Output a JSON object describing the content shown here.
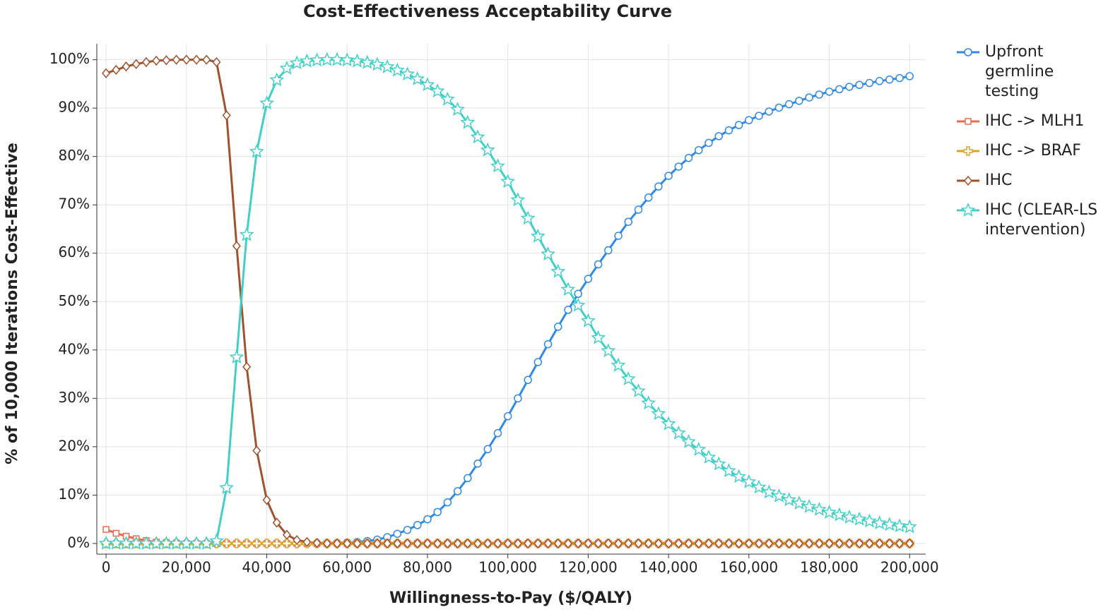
{
  "chart_data": {
    "type": "line",
    "title": "Cost-Effectiveness Acceptability Curve",
    "x_label": "Willingness-to-Pay ($/QALY)",
    "y_label": "% of 10,000 Iterations Cost-Effective",
    "x": [
      0,
      2500,
      5000,
      7500,
      10000,
      12500,
      15000,
      17500,
      20000,
      22500,
      25000,
      27500,
      30000,
      32500,
      35000,
      37500,
      40000,
      42500,
      45000,
      47500,
      50000,
      52500,
      55000,
      57500,
      60000,
      62500,
      65000,
      67500,
      70000,
      72500,
      75000,
      77500,
      80000,
      82500,
      85000,
      87500,
      90000,
      92500,
      95000,
      97500,
      100000,
      102500,
      105000,
      107500,
      110000,
      112500,
      115000,
      117500,
      120000,
      122500,
      125000,
      127500,
      130000,
      132500,
      135000,
      137500,
      140000,
      142500,
      145000,
      147500,
      150000,
      152500,
      155000,
      157500,
      160000,
      162500,
      165000,
      167500,
      170000,
      172500,
      175000,
      177500,
      180000,
      182500,
      185000,
      187500,
      190000,
      192500,
      195000,
      197500,
      200000
    ],
    "series": [
      {
        "name": "Upfront germline testing",
        "color": "#2e8ae6",
        "marker": "circle",
        "values": [
          0,
          0,
          0,
          0,
          0,
          0,
          0,
          0,
          0,
          0,
          0,
          0,
          0,
          0,
          0,
          0,
          0,
          0,
          0,
          0,
          0,
          0,
          0,
          0.1,
          0.2,
          0.3,
          0.5,
          0.8,
          1.3,
          2.0,
          2.8,
          3.8,
          5.0,
          6.5,
          8.5,
          10.8,
          13.5,
          16.5,
          19.5,
          22.8,
          26.3,
          30,
          33.8,
          37.5,
          41.2,
          44.8,
          48.3,
          51.6,
          54.7,
          57.7,
          60.6,
          63.6,
          66.5,
          69,
          71.5,
          73.8,
          76,
          77.9,
          79.7,
          81.3,
          82.8,
          84.2,
          85.4,
          86.5,
          87.5,
          88.4,
          89.3,
          90.1,
          90.8,
          91.5,
          92.2,
          92.8,
          93.4,
          93.9,
          94.4,
          94.8,
          95.2,
          95.6,
          95.9,
          96.2,
          96.6
        ]
      },
      {
        "name": "IHC -> MLH1",
        "color": "#f0694f",
        "marker": "square",
        "values": [
          2.9,
          2.1,
          1.5,
          1.0,
          0.6,
          0.3,
          0.2,
          0.1,
          0,
          0,
          0,
          0,
          0,
          0,
          0,
          0,
          0,
          0,
          0,
          0,
          0,
          0,
          0,
          0,
          0,
          0,
          0,
          0,
          0,
          0,
          0,
          0,
          0,
          0,
          0,
          0,
          0,
          0,
          0,
          0,
          0,
          0,
          0,
          0,
          0,
          0,
          0,
          0,
          0,
          0,
          0,
          0,
          0,
          0,
          0,
          0,
          0,
          0,
          0,
          0,
          0,
          0,
          0,
          0,
          0,
          0,
          0,
          0,
          0,
          0,
          0,
          0,
          0,
          0,
          0,
          0,
          0,
          0,
          0,
          0,
          0
        ]
      },
      {
        "name": "IHC -> BRAF",
        "color": "#e0a020",
        "marker": "plus",
        "values": [
          0,
          0,
          0,
          0,
          0,
          0,
          0,
          0,
          0,
          0,
          0,
          0,
          0,
          0,
          0,
          0,
          0,
          0,
          0,
          0,
          0,
          0,
          0,
          0,
          0,
          0,
          0,
          0,
          0,
          0,
          0,
          0,
          0,
          0,
          0,
          0,
          0,
          0,
          0,
          0,
          0,
          0,
          0,
          0,
          0,
          0,
          0,
          0,
          0,
          0,
          0,
          0,
          0,
          0,
          0,
          0,
          0,
          0,
          0,
          0,
          0,
          0,
          0,
          0,
          0,
          0,
          0,
          0,
          0,
          0,
          0,
          0,
          0,
          0,
          0,
          0,
          0,
          0,
          0,
          0,
          0
        ]
      },
      {
        "name": "IHC",
        "color": "#a0522d",
        "marker": "diamond",
        "values": [
          97.2,
          97.9,
          98.6,
          99.1,
          99.5,
          99.8,
          99.9,
          100,
          100,
          100,
          100,
          99.5,
          88.5,
          61.5,
          36.5,
          19.2,
          9.0,
          4.3,
          1.8,
          0.7,
          0.3,
          0.1,
          0,
          0,
          0,
          0,
          0,
          0,
          0,
          0,
          0,
          0,
          0,
          0,
          0,
          0,
          0,
          0,
          0,
          0,
          0,
          0,
          0,
          0,
          0,
          0,
          0,
          0,
          0,
          0,
          0,
          0,
          0,
          0,
          0,
          0,
          0,
          0,
          0,
          0,
          0,
          0,
          0,
          0,
          0,
          0,
          0,
          0,
          0,
          0,
          0,
          0,
          0,
          0,
          0,
          0,
          0,
          0,
          0,
          0,
          0
        ]
      },
      {
        "name": "IHC (CLEAR-LS intervention)",
        "color": "#40d0c8",
        "marker": "star",
        "values": [
          0,
          0,
          0,
          0,
          0,
          0,
          0,
          0,
          0,
          0,
          0,
          0.5,
          11.5,
          38.5,
          63.8,
          81,
          91,
          95.8,
          98.2,
          99.3,
          99.7,
          99.9,
          100,
          100,
          99.9,
          99.7,
          99.4,
          99,
          98.5,
          97.8,
          97,
          96,
          94.8,
          93.5,
          91.8,
          89.7,
          87,
          84,
          81.3,
          78,
          74.8,
          71,
          67.2,
          63.5,
          59.8,
          56.2,
          52.5,
          49.2,
          46,
          42.5,
          39.8,
          36.8,
          34,
          31.5,
          29,
          26.8,
          24.7,
          22.8,
          21,
          19.4,
          17.8,
          16.4,
          15,
          13.8,
          12.7,
          11.6,
          10.6,
          9.8,
          9,
          8.3,
          7.6,
          7,
          6.4,
          5.9,
          5.4,
          5,
          4.6,
          4.2,
          3.9,
          3.6,
          3.4
        ]
      }
    ],
    "xlim": [
      -2300,
      204000
    ],
    "xticks": [
      0,
      {
        "value": 20000,
        "label": "20,000"
      },
      {
        "value": 40000,
        "label": "40,000"
      },
      {
        "value": 60000,
        "label": "60,000"
      },
      {
        "value": 80000,
        "label": "80,000"
      },
      {
        "value": 100000,
        "label": "100,000"
      },
      {
        "value": 120000,
        "label": "120,000"
      },
      {
        "value": 140000,
        "label": "140,000"
      },
      {
        "value": 160000,
        "label": "160,000"
      },
      {
        "value": 180000,
        "label": "180,000"
      },
      {
        "value": 200000,
        "label": "200,000"
      }
    ],
    "ylim": [
      -2.2,
      103.3
    ],
    "yticks": [
      {
        "value": 0,
        "label": "0%"
      },
      {
        "value": 10,
        "label": "10%"
      },
      {
        "value": 20,
        "label": "20%"
      },
      {
        "value": 30,
        "label": "30%"
      },
      {
        "value": 40,
        "label": "40%"
      },
      {
        "value": 50,
        "label": "50%"
      },
      {
        "value": 60,
        "label": "60%"
      },
      {
        "value": 70,
        "label": "70%"
      },
      {
        "value": 80,
        "label": "80%"
      },
      {
        "value": 90,
        "label": "90%"
      },
      {
        "value": 100,
        "label": "100%"
      }
    ],
    "grid": true,
    "legend": "right"
  }
}
